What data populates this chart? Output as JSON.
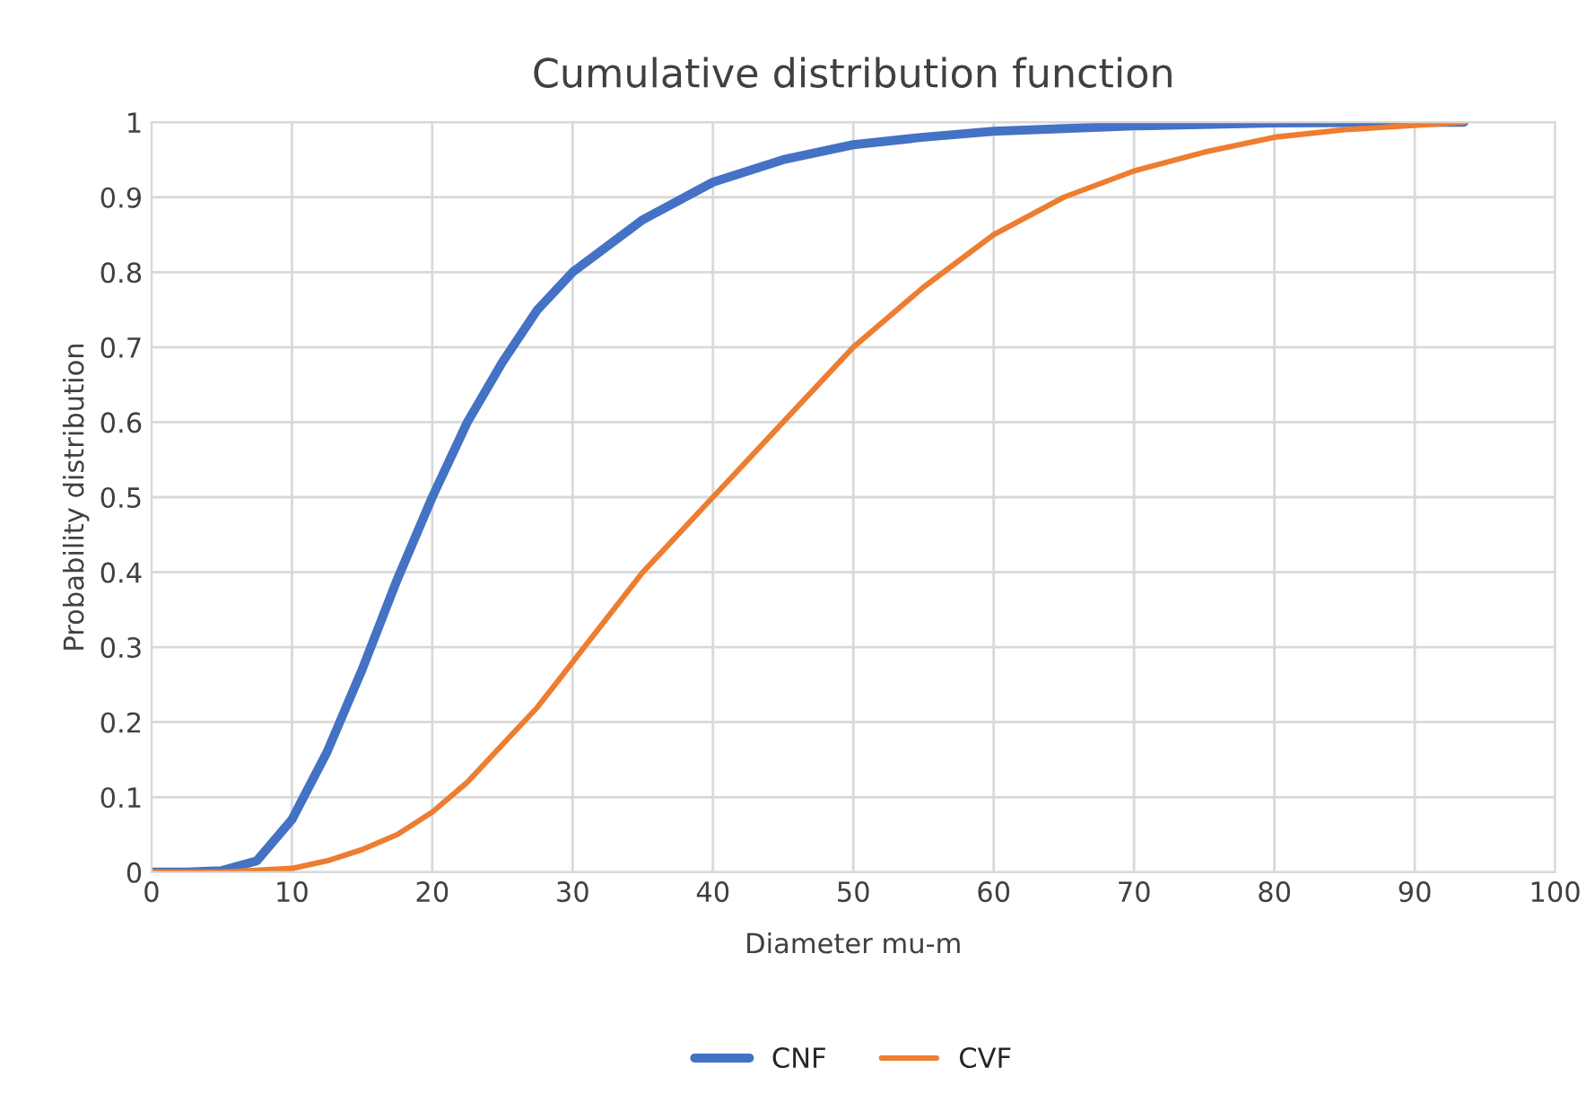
{
  "chart_data": {
    "type": "line",
    "title": "Cumulative distribution function",
    "xlabel": "Diameter mu-m",
    "ylabel": "Probability distribution",
    "xlim": [
      0,
      100
    ],
    "xticks": [
      0,
      10,
      20,
      30,
      40,
      50,
      60,
      70,
      80,
      90,
      100
    ],
    "ylim": [
      0,
      1
    ],
    "yticks": [
      0,
      0.1,
      0.2,
      0.3,
      0.4,
      0.5,
      0.6,
      0.7,
      0.8,
      0.9,
      1
    ],
    "grid": true,
    "legend": "bottom",
    "marker": "none",
    "line_style": "solid",
    "series": [
      {
        "name": "CNF",
        "color": "#4472c4",
        "x": [
          0,
          2.5,
          5,
          7.5,
          10,
          12.5,
          15,
          17.5,
          20,
          22.5,
          25,
          27.5,
          30,
          35,
          40,
          45,
          50,
          55,
          60,
          70,
          80,
          93.5
        ],
        "values": [
          0,
          0,
          0.002,
          0.015,
          0.07,
          0.16,
          0.27,
          0.39,
          0.5,
          0.6,
          0.68,
          0.75,
          0.8,
          0.87,
          0.92,
          0.95,
          0.97,
          0.98,
          0.988,
          0.995,
          0.999,
          1
        ]
      },
      {
        "name": "CVF",
        "color": "#ed7d31",
        "x": [
          0,
          5,
          10,
          12.5,
          15,
          17.5,
          20,
          22.5,
          25,
          27.5,
          30,
          32.5,
          35,
          37.5,
          40,
          45,
          50,
          55,
          60,
          65,
          70,
          75,
          80,
          85,
          93.5
        ],
        "values": [
          0,
          0,
          0.005,
          0.015,
          0.03,
          0.05,
          0.08,
          0.12,
          0.17,
          0.22,
          0.28,
          0.34,
          0.4,
          0.45,
          0.5,
          0.6,
          0.7,
          0.78,
          0.85,
          0.9,
          0.935,
          0.96,
          0.98,
          0.99,
          1
        ]
      }
    ]
  }
}
